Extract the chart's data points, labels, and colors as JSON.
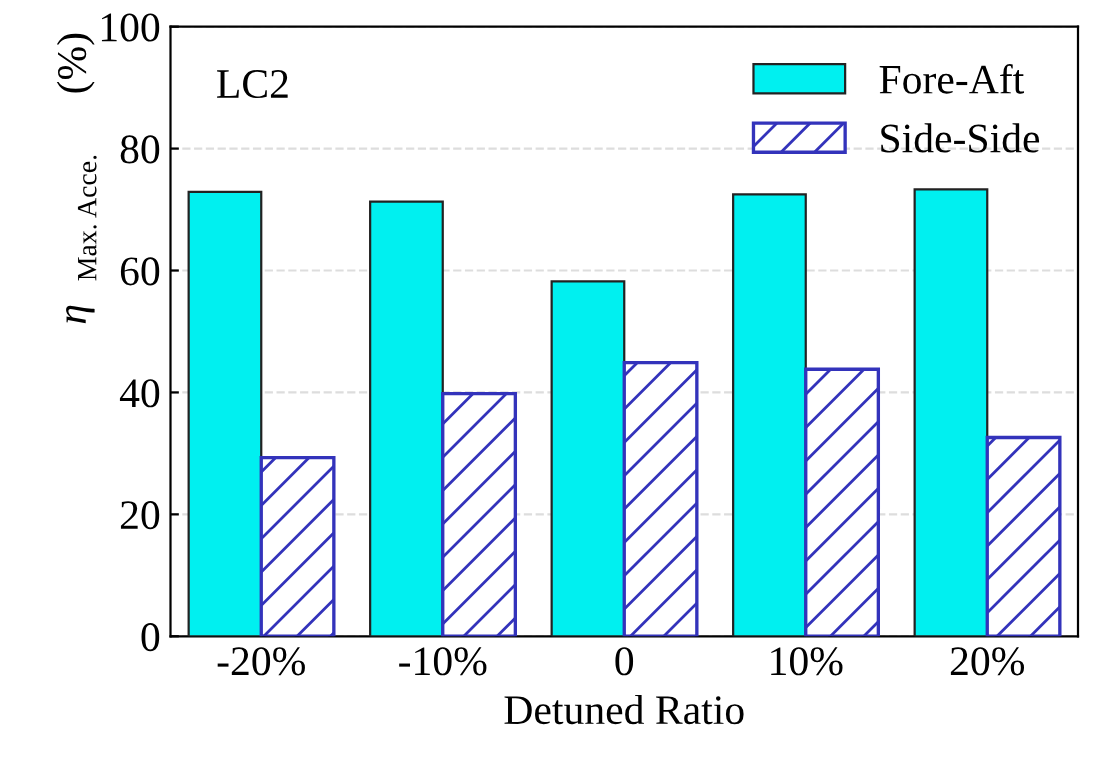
{
  "chart_data": {
    "type": "bar",
    "xlabel": "Detuned Ratio",
    "ylabel": "η $_{Max. Acce.}$ (%)",
    "annotations": [
      "LC2"
    ],
    "categories": [
      "-20%",
      "-10%",
      "0",
      "10%",
      "20%"
    ],
    "series": [
      {
        "name": "Fore-Aft",
        "color": "#00f0f0",
        "values": [
          72.9,
          71.3,
          58.2,
          72.5,
          73.3
        ]
      },
      {
        "name": "Side-Side",
        "color": "#3333bb",
        "values": [
          29.3,
          39.8,
          44.9,
          43.8,
          32.6
        ]
      }
    ],
    "ylim": [
      0,
      100
    ],
    "yticks": [
      0,
      20,
      40,
      60,
      80,
      100
    ],
    "grid": "y",
    "legend": "top right"
  }
}
